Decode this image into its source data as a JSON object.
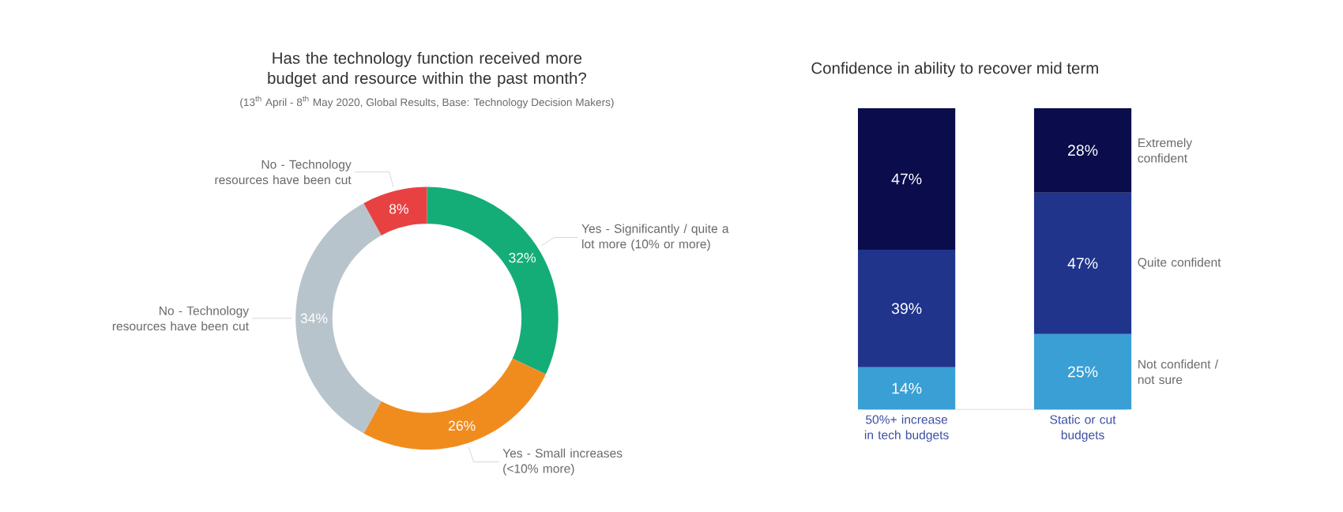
{
  "chart_data": [
    {
      "type": "donut",
      "title": "Has the technology function received more budget and resource within the past month?",
      "subtitle": "(13$^{th}$ April - 8$^{th}$ May 2020, Global Results, Base: Technology Decision Makers)",
      "categories": [
        "Yes - Significantly / quite a lot more (10% or more)",
        "Yes - Small increases (<10% more)",
        "No - Technology resources have been cut",
        "No - Technology resources have been cut"
      ],
      "values": [
        32,
        26,
        34,
        8
      ],
      "colors": [
        "#14ad78",
        "#f08c1e",
        "#b8c4cb",
        "#e84142"
      ],
      "value_labels": [
        "32%",
        "26%",
        "34%",
        "8%"
      ]
    },
    {
      "type": "bar",
      "title": "Confidence in ability to recover mid term",
      "stacked": true,
      "categories": [
        "50%+ increase in tech budgets",
        "Static or cut budgets"
      ],
      "series": [
        {
          "name": "Not confident / not sure",
          "color": "#3a9fd4",
          "values": [
            14,
            25
          ],
          "value_labels": [
            "14%",
            "25%"
          ]
        },
        {
          "name": "Quite confident",
          "color": "#20348c",
          "values": [
            39,
            47
          ],
          "value_labels": [
            "39%",
            "47%"
          ]
        },
        {
          "name": "Extremely confident",
          "color": "#0a0c4b",
          "values": [
            47,
            28
          ],
          "value_labels": [
            "47%",
            "28%"
          ]
        }
      ]
    }
  ]
}
